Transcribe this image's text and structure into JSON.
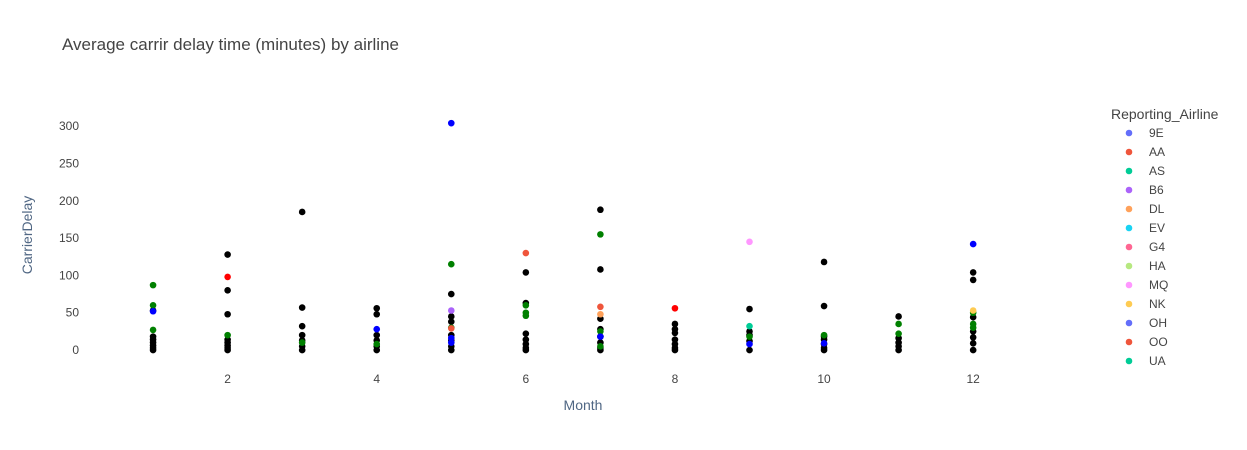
{
  "chart_data": {
    "type": "scatter",
    "title": "Average carrir delay time (minutes) by airline",
    "xlabel": "Month",
    "ylabel": "CarrierDelay",
    "xlim": [
      0.02,
      13.5
    ],
    "ylim": [
      -20,
      335
    ],
    "xticks": [
      2,
      4,
      6,
      8,
      10,
      12
    ],
    "yticks": [
      0,
      50,
      100,
      150,
      200,
      250,
      300
    ],
    "grid": false,
    "legend": {
      "title": "Reporting_Airline",
      "position": "right",
      "entries": [
        {
          "name": "9E",
          "color": "#636efa"
        },
        {
          "name": "AA",
          "color": "#ef553b"
        },
        {
          "name": "AS",
          "color": "#00cc96"
        },
        {
          "name": "B6",
          "color": "#ab63fa"
        },
        {
          "name": "DL",
          "color": "#ffa15a"
        },
        {
          "name": "EV",
          "color": "#19d3f3"
        },
        {
          "name": "G4",
          "color": "#ff6692"
        },
        {
          "name": "HA",
          "color": "#b6e880"
        },
        {
          "name": "MQ",
          "color": "#ff97ff"
        },
        {
          "name": "NK",
          "color": "#fecb52"
        },
        {
          "name": "OH",
          "color": "#636efa"
        },
        {
          "name": "OO",
          "color": "#ef553b"
        },
        {
          "name": "UA",
          "color": "#00cc96"
        }
      ]
    },
    "series": [
      {
        "name": "black",
        "color": "#000000",
        "points": [
          [
            1,
            0
          ],
          [
            1,
            3
          ],
          [
            1,
            6
          ],
          [
            1,
            10
          ],
          [
            1,
            14
          ],
          [
            1,
            18
          ],
          [
            1,
            53
          ],
          [
            2,
            0
          ],
          [
            2,
            3
          ],
          [
            2,
            6
          ],
          [
            2,
            10
          ],
          [
            2,
            14
          ],
          [
            2,
            48
          ],
          [
            2,
            80
          ],
          [
            2,
            128
          ],
          [
            3,
            0
          ],
          [
            3,
            5
          ],
          [
            3,
            13
          ],
          [
            3,
            20
          ],
          [
            3,
            32
          ],
          [
            3,
            57
          ],
          [
            3,
            185
          ],
          [
            4,
            0
          ],
          [
            4,
            5
          ],
          [
            4,
            13
          ],
          [
            4,
            20
          ],
          [
            4,
            48
          ],
          [
            4,
            56
          ],
          [
            5,
            0
          ],
          [
            5,
            5
          ],
          [
            5,
            13
          ],
          [
            5,
            20
          ],
          [
            5,
            38
          ],
          [
            5,
            45
          ],
          [
            5,
            75
          ],
          [
            6,
            0
          ],
          [
            6,
            3
          ],
          [
            6,
            8
          ],
          [
            6,
            14
          ],
          [
            6,
            22
          ],
          [
            6,
            63
          ],
          [
            6,
            104
          ],
          [
            7,
            0
          ],
          [
            7,
            3
          ],
          [
            7,
            10
          ],
          [
            7,
            18
          ],
          [
            7,
            28
          ],
          [
            7,
            42
          ],
          [
            7,
            108
          ],
          [
            7,
            188
          ],
          [
            8,
            0
          ],
          [
            8,
            3
          ],
          [
            8,
            8
          ],
          [
            8,
            14
          ],
          [
            8,
            23
          ],
          [
            8,
            28
          ],
          [
            8,
            35
          ],
          [
            9,
            0
          ],
          [
            9,
            12
          ],
          [
            9,
            20
          ],
          [
            9,
            25
          ],
          [
            9,
            55
          ],
          [
            10,
            0
          ],
          [
            10,
            3
          ],
          [
            10,
            8
          ],
          [
            10,
            14
          ],
          [
            10,
            18
          ],
          [
            10,
            59
          ],
          [
            10,
            118
          ],
          [
            11,
            0
          ],
          [
            11,
            5
          ],
          [
            11,
            10
          ],
          [
            11,
            16
          ],
          [
            11,
            45
          ],
          [
            12,
            0
          ],
          [
            12,
            9
          ],
          [
            12,
            17
          ],
          [
            12,
            25
          ],
          [
            12,
            44
          ],
          [
            12,
            94
          ],
          [
            12,
            104
          ]
        ]
      },
      {
        "name": "green",
        "color": "#008000",
        "points": [
          [
            1,
            27
          ],
          [
            1,
            60
          ],
          [
            1,
            87
          ],
          [
            2,
            20
          ],
          [
            3,
            10
          ],
          [
            4,
            8
          ],
          [
            5,
            30
          ],
          [
            5,
            115
          ],
          [
            6,
            46
          ],
          [
            6,
            50
          ],
          [
            6,
            60
          ],
          [
            7,
            5
          ],
          [
            7,
            25
          ],
          [
            7,
            155
          ],
          [
            9,
            18
          ],
          [
            10,
            20
          ],
          [
            11,
            22
          ],
          [
            11,
            35
          ],
          [
            12,
            30
          ],
          [
            12,
            35
          ],
          [
            12,
            50
          ]
        ]
      },
      {
        "name": "blue",
        "color": "#0000ff",
        "points": [
          [
            1,
            52
          ],
          [
            4,
            28
          ],
          [
            5,
            10
          ],
          [
            5,
            16
          ],
          [
            5,
            304
          ],
          [
            7,
            18
          ],
          [
            9,
            8
          ],
          [
            10,
            9
          ],
          [
            12,
            142
          ]
        ]
      },
      {
        "name": "red",
        "color": "#ff0000",
        "points": [
          [
            2,
            98
          ],
          [
            8,
            56
          ]
        ]
      },
      {
        "name": "AA",
        "color": "#ef553b",
        "points": [
          [
            5,
            29
          ],
          [
            6,
            130
          ],
          [
            7,
            58
          ]
        ]
      },
      {
        "name": "AS",
        "color": "#00cc96",
        "points": [
          [
            9,
            32
          ]
        ]
      },
      {
        "name": "B6",
        "color": "#ab63fa",
        "points": [
          [
            5,
            53
          ]
        ]
      },
      {
        "name": "MQ",
        "color": "#ff97ff",
        "points": [
          [
            9,
            145
          ]
        ]
      },
      {
        "name": "DL",
        "color": "#ffa15a",
        "points": [
          [
            7,
            48
          ]
        ]
      },
      {
        "name": "NK",
        "color": "#fecb52",
        "points": [
          [
            12,
            53
          ]
        ]
      }
    ]
  }
}
